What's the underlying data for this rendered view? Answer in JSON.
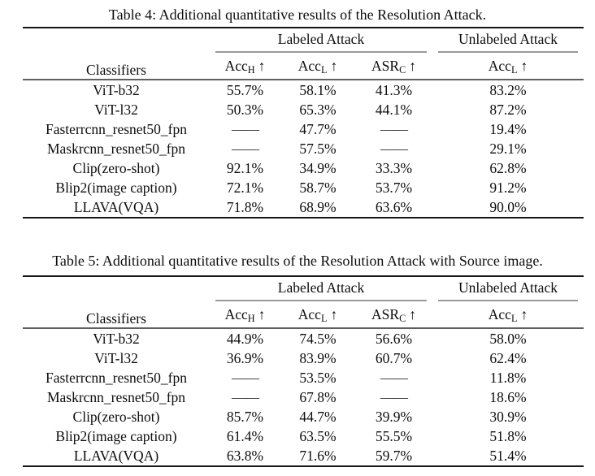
{
  "tables": [
    {
      "caption": "Table 4: Additional quantitative results of the Resolution Attack.",
      "header": {
        "classifiers": "Classifiers",
        "labeled_group": "Labeled Attack",
        "unlabeled_group": "Unlabeled Attack",
        "cols": [
          {
            "base": "Acc",
            "sub": "H",
            "arrow": "↑"
          },
          {
            "base": "Acc",
            "sub": "L",
            "arrow": "↑"
          },
          {
            "base": "ASR",
            "sub": "C",
            "arrow": "↑"
          },
          {
            "base": "Acc",
            "sub": "L",
            "arrow": "↑"
          }
        ]
      },
      "rows": [
        {
          "classifier": "ViT-b32",
          "values": [
            "55.7%",
            "58.1%",
            "41.3%",
            "83.2%"
          ]
        },
        {
          "classifier": "ViT-l32",
          "values": [
            "50.3%",
            "65.3%",
            "44.1%",
            "87.2%"
          ]
        },
        {
          "classifier": "Fasterrcnn_resnet50_fpn",
          "values": [
            "——",
            "47.7%",
            "——",
            "19.4%"
          ]
        },
        {
          "classifier": "Maskrcnn_resnet50_fpn",
          "values": [
            "——",
            "57.5%",
            "——",
            "29.1%"
          ]
        },
        {
          "classifier": "Clip(zero-shot)",
          "values": [
            "92.1%",
            "34.9%",
            "33.3%",
            "62.8%"
          ]
        },
        {
          "classifier": "Blip2(image caption)",
          "values": [
            "72.1%",
            "58.7%",
            "53.7%",
            "91.2%"
          ]
        },
        {
          "classifier": "LLAVA(VQA)",
          "values": [
            "71.8%",
            "68.9%",
            "63.6%",
            "90.0%"
          ]
        }
      ]
    },
    {
      "caption": "Table 5: Additional quantitative results of the Resolution Attack with Source image.",
      "header": {
        "classifiers": "Classifiers",
        "labeled_group": "Labeled Attack",
        "unlabeled_group": "Unlabeled Attack",
        "cols": [
          {
            "base": "Acc",
            "sub": "H",
            "arrow": "↑"
          },
          {
            "base": "Acc",
            "sub": "L",
            "arrow": "↑"
          },
          {
            "base": "ASR",
            "sub": "C",
            "arrow": "↑"
          },
          {
            "base": "Acc",
            "sub": "L",
            "arrow": "↑"
          }
        ]
      },
      "rows": [
        {
          "classifier": "ViT-b32",
          "values": [
            "44.9%",
            "74.5%",
            "56.6%",
            "58.0%"
          ]
        },
        {
          "classifier": "ViT-l32",
          "values": [
            "36.9%",
            "83.9%",
            "60.7%",
            "62.4%"
          ]
        },
        {
          "classifier": "Fasterrcnn_resnet50_fpn",
          "values": [
            "——",
            "53.5%",
            "——",
            "11.8%"
          ]
        },
        {
          "classifier": "Maskrcnn_resnet50_fpn",
          "values": [
            "——",
            "67.8%",
            "——",
            "18.6%"
          ]
        },
        {
          "classifier": "Clip(zero-shot)",
          "values": [
            "85.7%",
            "44.7%",
            "39.9%",
            "30.9%"
          ]
        },
        {
          "classifier": "Blip2(image caption)",
          "values": [
            "61.4%",
            "63.5%",
            "55.5%",
            "51.8%"
          ]
        },
        {
          "classifier": "LLAVA(VQA)",
          "values": [
            "63.8%",
            "71.6%",
            "59.7%",
            "51.4%"
          ]
        }
      ]
    }
  ]
}
